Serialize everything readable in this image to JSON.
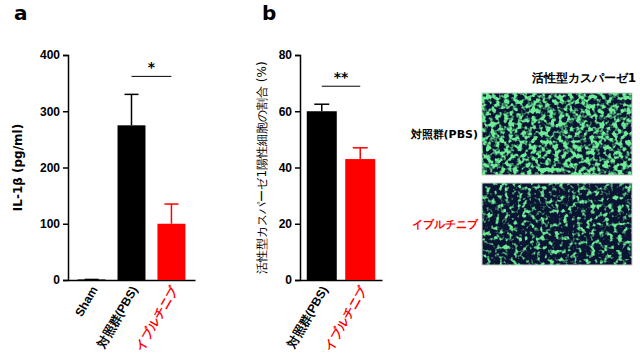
{
  "chart_data": [
    {
      "type": "bar",
      "title": "a",
      "y_label": "IL-1β (pg/ml)",
      "categories": [
        "Sham",
        "対照群(PBS)",
        "イブルチニブ"
      ],
      "values": [
        1,
        275,
        100
      ],
      "errors": [
        0,
        55,
        35
      ],
      "colors": [
        "#000000",
        "#000000",
        "#ff0000"
      ],
      "ylim": [
        0,
        400
      ],
      "yticks": [
        0,
        100,
        200,
        300,
        400
      ],
      "annotations": [
        {
          "text": "*",
          "categories": [
            1,
            2
          ]
        }
      ]
    },
    {
      "type": "bar",
      "title": "b",
      "y_label": "活性型カスパーゼ1陽性細胞の割合 (%)",
      "categories": [
        "対照群(PBS)",
        "イブルチニブ"
      ],
      "values": [
        60,
        43
      ],
      "errors": [
        2.5,
        4
      ],
      "colors": [
        "#000000",
        "#ff0000"
      ],
      "ylim": [
        0,
        80
      ],
      "yticks": [
        0,
        20,
        40,
        60,
        80
      ],
      "annotations": [
        {
          "text": "**",
          "categories": [
            0,
            1
          ]
        }
      ]
    }
  ],
  "micrographs": {
    "title": "活性型カスパーゼ1",
    "labels": [
      "対照群(PBS)",
      "イブルチニブ"
    ],
    "colors": [
      "#000000",
      "#ff0000"
    ]
  }
}
